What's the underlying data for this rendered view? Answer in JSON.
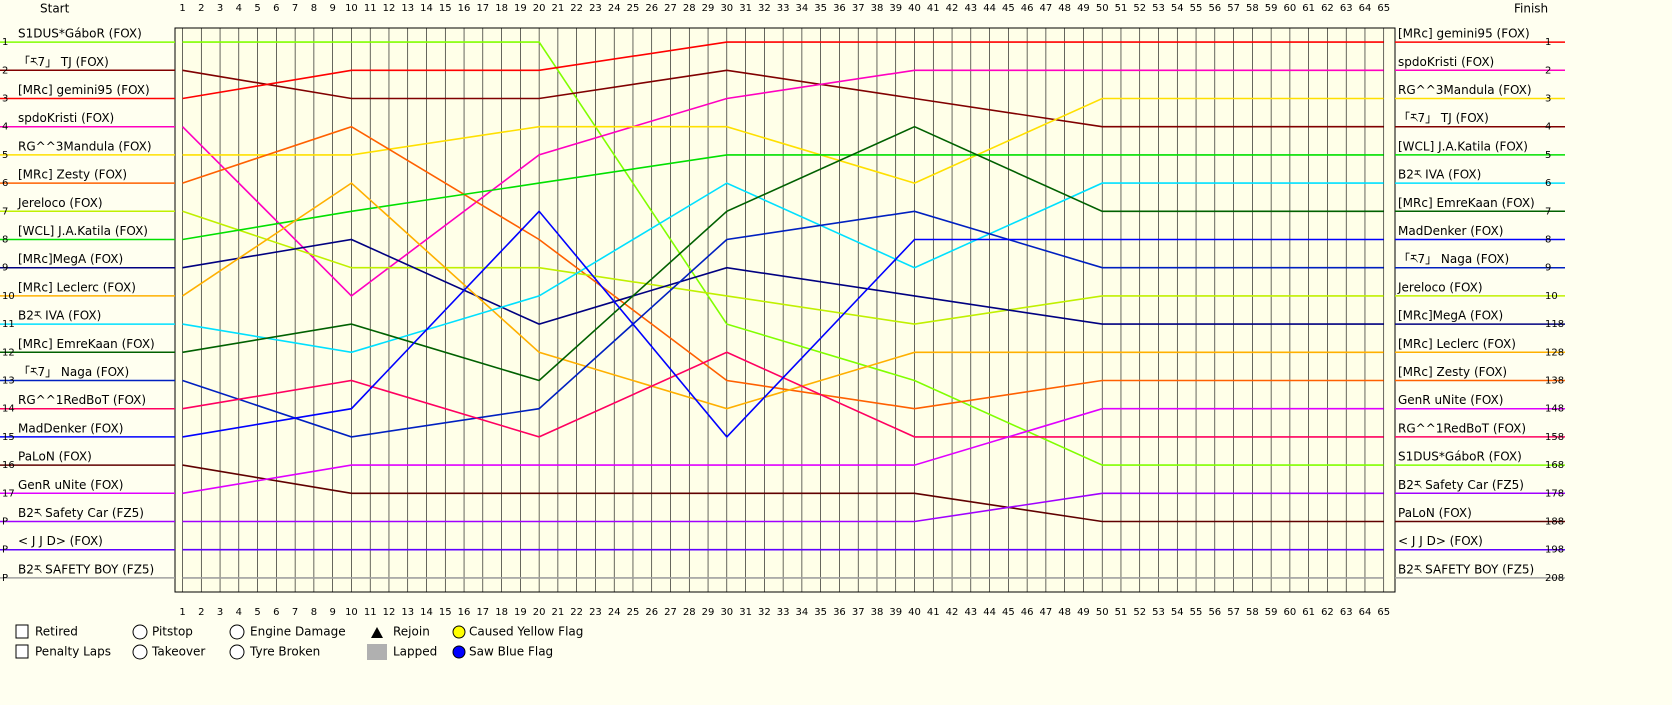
{
  "chart_data": {
    "type": "line",
    "start_label": "Start",
    "finish_label": "Finish",
    "x": [
      1,
      10,
      20,
      30,
      40,
      50,
      65
    ],
    "xlim": [
      0.6,
      65.6
    ],
    "xticks": [
      1,
      2,
      3,
      4,
      5,
      6,
      7,
      8,
      9,
      10,
      11,
      12,
      13,
      14,
      15,
      16,
      17,
      18,
      19,
      20,
      21,
      22,
      23,
      24,
      25,
      26,
      27,
      28,
      29,
      30,
      31,
      32,
      33,
      34,
      35,
      36,
      37,
      38,
      39,
      40,
      41,
      42,
      43,
      44,
      45,
      46,
      47,
      48,
      49,
      50,
      51,
      52,
      53,
      54,
      55,
      56,
      57,
      58,
      59,
      60,
      61,
      62,
      63,
      64,
      65
    ],
    "ylim": [
      0.5,
      20.5
    ],
    "yticks": [
      1,
      2,
      3,
      4,
      5,
      6,
      7,
      8,
      9,
      10,
      11,
      12,
      13,
      14,
      15,
      16,
      17,
      {
        "value": 18,
        "label": "P"
      },
      {
        "value": 19,
        "label": "P"
      },
      {
        "value": 20,
        "label": "P"
      }
    ],
    "y2ticks": [
      1,
      2,
      3,
      4,
      5,
      6,
      7,
      8,
      9,
      10,
      {
        "value": 11,
        "label": "118"
      },
      {
        "value": 12,
        "label": "128"
      },
      {
        "value": 13,
        "label": "138"
      },
      {
        "value": 14,
        "label": "148"
      },
      {
        "value": 15,
        "label": "158"
      },
      {
        "value": 16,
        "label": "168"
      },
      {
        "value": 17,
        "label": "178"
      },
      {
        "value": 18,
        "label": "188"
      },
      {
        "value": 19,
        "label": "198"
      },
      {
        "value": 20,
        "label": "208"
      }
    ],
    "series": [
      {
        "name": "S1DUS*GáboR (FOX)",
        "color": "#80ff00",
        "values": [
          1,
          1,
          1,
          11,
          13,
          16,
          16
        ]
      },
      {
        "name": "「ར7」 TJ (FOX)",
        "color": "#800000",
        "values": [
          2,
          3,
          3,
          2,
          3,
          4,
          4
        ]
      },
      {
        "name": "[MRc] gemini95 (FOX)",
        "color": "#ff0000",
        "values": [
          3,
          2,
          2,
          1,
          1,
          1,
          1
        ]
      },
      {
        "name": "spdoKristi (FOX)",
        "color": "#ff00c0",
        "values": [
          4,
          10,
          5,
          3,
          2,
          2,
          2
        ]
      },
      {
        "name": "RG^^3Mandula (FOX)",
        "color": "#ffe000",
        "values": [
          5,
          5,
          4,
          4,
          6,
          3,
          3
        ]
      },
      {
        "name": "[MRc] Zesty (FOX)",
        "color": "#ff6000",
        "values": [
          6,
          4,
          8,
          13,
          14,
          13,
          13
        ]
      },
      {
        "name": "Jereloco (FOX)",
        "color": "#c0f000",
        "values": [
          7,
          9,
          9,
          10,
          11,
          10,
          10
        ]
      },
      {
        "name": "[WCL] J.A.Katila (FOX)",
        "color": "#00e000",
        "values": [
          8,
          7,
          6,
          5,
          5,
          5,
          5
        ]
      },
      {
        "name": "[MRc]MegA (FOX)",
        "color": "#000080",
        "values": [
          9,
          8,
          11,
          9,
          10,
          11,
          11
        ]
      },
      {
        "name": "[MRc] Leclerc (FOX)",
        "color": "#ffb000",
        "values": [
          10,
          6,
          12,
          14,
          12,
          12,
          12
        ]
      },
      {
        "name": "B2ར IVA (FOX)",
        "color": "#00e0ff",
        "values": [
          11,
          12,
          10,
          6,
          9,
          6,
          6
        ]
      },
      {
        "name": "[MRc] EmreKaan (FOX)",
        "color": "#006000",
        "values": [
          12,
          11,
          13,
          7,
          4,
          7,
          7
        ]
      },
      {
        "name": "「ར7」 Naga (FOX)",
        "color": "#0020c0",
        "values": [
          13,
          15,
          14,
          8,
          7,
          9,
          9
        ]
      },
      {
        "name": "RG^^1RedBoT (FOX)",
        "color": "#ff0060",
        "values": [
          14,
          13,
          15,
          12,
          15,
          15,
          15
        ]
      },
      {
        "name": "MadDenker (FOX)",
        "color": "#0000ff",
        "values": [
          15,
          14,
          7,
          15,
          8,
          8,
          8
        ]
      },
      {
        "name": "PaLoN (FOX)",
        "color": "#600000",
        "values": [
          16,
          17,
          17,
          17,
          17,
          18,
          18
        ]
      },
      {
        "name": "GenR uNite (FOX)",
        "color": "#e000ff",
        "values": [
          17,
          16,
          16,
          16,
          16,
          14,
          14
        ]
      },
      {
        "name": "B2ར Safety Car (FZ5)",
        "color": "#a000ff",
        "values": [
          18,
          18,
          18,
          18,
          18,
          17,
          17
        ]
      },
      {
        "name": "< J J D> (FOX)",
        "color": "#6000ff",
        "values": [
          19,
          19,
          19,
          19,
          19,
          19,
          19
        ]
      },
      {
        "name": "B2ར SAFETY BOY (FZ5)",
        "color": "#a0a0a0",
        "values": [
          20,
          20,
          20,
          20,
          20,
          20,
          20
        ]
      }
    ],
    "finish_labels": [
      "[MRc] gemini95 (FOX)",
      "spdoKristi (FOX)",
      "RG^^3Mandula (FOX)",
      "「ར7」 TJ (FOX)",
      "[WCL] J.A.Katila (FOX)",
      "B2ར IVA (FOX)",
      "[MRc] EmreKaan (FOX)",
      "MadDenker (FOX)",
      "「ར7」 Naga (FOX)",
      "Jereloco (FOX)",
      "[MRc]MegA (FOX)",
      "[MRc] Leclerc (FOX)",
      "[MRc] Zesty (FOX)",
      "GenR uNite (FOX)",
      "RG^^1RedBoT (FOX)",
      "S1DUS*GáboR (FOX)",
      "B2ར Safety Car (FZ5)",
      "PaLoN (FOX)",
      "< J J D> (FOX)",
      "B2ར SAFETY BOY (FZ5)"
    ],
    "legend": [
      "Retired",
      "Pitstop",
      "Engine Damage",
      "Rejoin",
      "Caused Yellow Flag",
      "Penalty Laps",
      "Takeover",
      "Tyre Broken",
      "Lapped",
      "Saw Blue Flag"
    ]
  }
}
